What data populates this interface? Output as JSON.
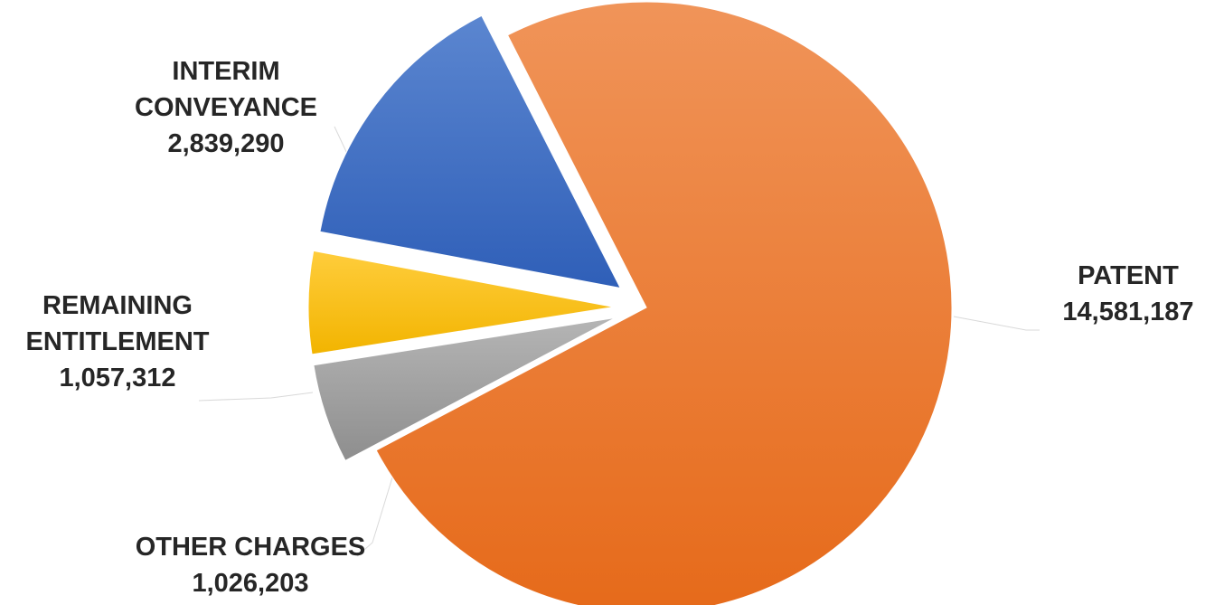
{
  "chart_data": {
    "type": "pie",
    "title": "",
    "categories": [
      "PATENT",
      "OTHER CHARGES",
      "REMAINING ENTITLEMENT",
      "INTERIM CONVEYANCE"
    ],
    "values": [
      14581187,
      1026203,
      1057312,
      2839290
    ],
    "value_labels": [
      "14,581,187",
      "1,026,203",
      "1,057,312",
      "2,839,290"
    ],
    "label_lines": [
      [
        "PATENT",
        "14,581,187"
      ],
      [
        "OTHER CHARGES",
        "1,026,203"
      ],
      [
        "REMAINING",
        "ENTITLEMENT",
        "1,057,312"
      ],
      [
        "INTERIM",
        "CONVEYANCE",
        "2,839,290"
      ]
    ],
    "colors": [
      "#ED7D31",
      "#A5A5A5",
      "#FFC000",
      "#4472C4"
    ],
    "exploded": [
      false,
      true,
      true,
      true
    ],
    "start_angle_deg": 333,
    "direction": "clockwise",
    "legend": "none",
    "data_labels": "outside-with-leader-lines"
  }
}
